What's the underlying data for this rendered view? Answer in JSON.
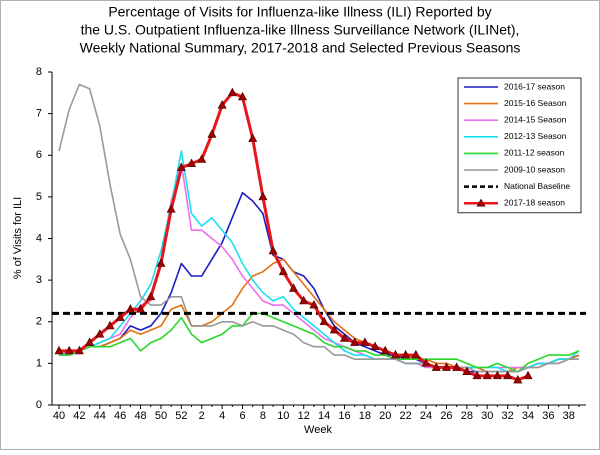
{
  "chart_data": {
    "type": "line",
    "title": [
      "Percentage of Visits for Influenza-like Illness (ILI) Reported by",
      "the U.S. Outpatient Influenza-like Illness Surveillance Network (ILINet),",
      "Weekly National Summary, 2017-2018 and Selected Previous Seasons"
    ],
    "x_label": "Week",
    "y_label": "% of Visits for ILI",
    "categories": [
      "40",
      null,
      "42",
      null,
      "44",
      null,
      "46",
      null,
      "48",
      null,
      "50",
      null,
      "52",
      null,
      "2",
      null,
      "4",
      null,
      "6",
      null,
      "8",
      null,
      "10",
      null,
      "12",
      null,
      "14",
      null,
      "16",
      null,
      "18",
      null,
      "20",
      null,
      "22",
      null,
      "24",
      null,
      "26",
      null,
      "28",
      null,
      "30",
      null,
      "32",
      null,
      "34",
      null,
      "36",
      null,
      "38",
      null
    ],
    "ylim": [
      0,
      8
    ],
    "yticks": [
      0,
      1,
      2,
      3,
      4,
      5,
      6,
      7,
      8
    ],
    "grid": false,
    "legend_position": "upper right",
    "series": [
      {
        "name": "2016-17 season",
        "color": "#1c1cc4",
        "values": [
          1.3,
          1.3,
          1.3,
          1.4,
          1.4,
          1.5,
          1.6,
          1.9,
          1.8,
          1.9,
          2.2,
          2.7,
          3.4,
          3.1,
          3.1,
          3.5,
          3.9,
          4.5,
          5.1,
          4.9,
          4.6,
          3.6,
          3.5,
          3.2,
          3.1,
          2.8,
          2.3,
          1.9,
          1.7,
          1.5,
          1.4,
          1.3,
          1.2,
          1.2,
          1.1,
          1.1,
          1.0,
          0.9,
          0.9,
          0.9,
          0.8,
          0.8,
          0.8,
          0.8,
          0.8,
          0.8,
          0.9,
          1.0,
          1.0,
          1.1,
          1.1,
          1.2
        ]
      },
      {
        "name": "2015-16 Season",
        "color": "#e4700f",
        "values": [
          1.3,
          1.3,
          1.3,
          1.4,
          1.4,
          1.5,
          1.6,
          1.8,
          1.7,
          1.8,
          1.9,
          2.3,
          2.4,
          1.9,
          1.9,
          2.0,
          2.2,
          2.4,
          2.8,
          3.1,
          3.2,
          3.4,
          3.5,
          3.2,
          2.9,
          2.6,
          2.3,
          2.0,
          1.8,
          1.6,
          1.5,
          1.4,
          1.3,
          1.2,
          1.2,
          1.1,
          1.1,
          1.0,
          1.0,
          0.9,
          0.9,
          0.9,
          0.8,
          0.8,
          0.8,
          0.9,
          0.9,
          0.9,
          1.0,
          1.1,
          1.1,
          1.2
        ]
      },
      {
        "name": "2014-15 Season",
        "color": "#ee6fee",
        "values": [
          1.2,
          1.3,
          1.3,
          1.4,
          1.5,
          1.6,
          1.7,
          2.1,
          2.4,
          2.5,
          3.5,
          4.9,
          5.8,
          4.2,
          4.2,
          4.0,
          3.8,
          3.5,
          3.1,
          2.8,
          2.5,
          2.4,
          2.4,
          2.2,
          2.0,
          1.8,
          1.6,
          1.5,
          1.4,
          1.3,
          1.2,
          1.1,
          1.1,
          1.1,
          1.0,
          1.0,
          0.9,
          0.9,
          0.9,
          0.9,
          0.9,
          0.9,
          0.9,
          0.9,
          0.9,
          0.9,
          0.9,
          1.0,
          1.0,
          1.0,
          1.1,
          1.1
        ]
      },
      {
        "name": "2012-13 Season",
        "color": "#18e0ee",
        "values": [
          1.2,
          1.2,
          1.3,
          1.4,
          1.5,
          1.6,
          1.9,
          2.2,
          2.5,
          2.9,
          3.7,
          4.8,
          6.1,
          4.6,
          4.3,
          4.5,
          4.2,
          3.9,
          3.4,
          3.0,
          2.7,
          2.5,
          2.6,
          2.3,
          2.1,
          1.9,
          1.7,
          1.5,
          1.3,
          1.2,
          1.2,
          1.1,
          1.1,
          1.1,
          1.0,
          1.0,
          1.0,
          0.9,
          0.9,
          0.9,
          0.9,
          0.9,
          0.9,
          0.9,
          0.8,
          0.8,
          0.9,
          1.0,
          1.0,
          1.1,
          1.1,
          1.3
        ]
      },
      {
        "name": "2011-12 season",
        "color": "#2ad82a",
        "values": [
          1.2,
          1.2,
          1.3,
          1.4,
          1.4,
          1.4,
          1.5,
          1.6,
          1.3,
          1.5,
          1.6,
          1.8,
          2.1,
          1.7,
          1.5,
          1.6,
          1.7,
          1.9,
          1.9,
          2.2,
          2.2,
          2.1,
          2.0,
          1.9,
          1.8,
          1.7,
          1.5,
          1.4,
          1.4,
          1.3,
          1.3,
          1.2,
          1.2,
          1.1,
          1.1,
          1.1,
          1.1,
          1.1,
          1.1,
          1.1,
          1.0,
          0.9,
          0.9,
          1.0,
          0.9,
          0.8,
          1.0,
          1.1,
          1.2,
          1.2,
          1.2,
          1.3
        ]
      },
      {
        "name": "2009-10 season",
        "color": "#999999",
        "values": [
          6.1,
          7.1,
          7.7,
          7.6,
          6.7,
          5.3,
          4.1,
          3.5,
          2.6,
          2.4,
          2.4,
          2.6,
          2.6,
          1.9,
          1.9,
          1.9,
          2.0,
          2.0,
          1.9,
          2.0,
          1.9,
          1.9,
          1.8,
          1.7,
          1.5,
          1.4,
          1.4,
          1.2,
          1.2,
          1.1,
          1.1,
          1.1,
          1.1,
          1.1,
          1.0,
          1.0,
          1.0,
          0.9,
          0.9,
          0.9,
          0.9,
          0.8,
          0.8,
          0.8,
          0.8,
          0.8,
          0.9,
          0.9,
          1.0,
          1.0,
          1.1,
          1.1
        ]
      },
      {
        "name": "National Baseline",
        "color": "#000000",
        "dashed": true,
        "value": 2.2
      },
      {
        "name": "2017-18 season",
        "color": "#e8151b",
        "marker": "triangle",
        "marker_color": "#a30000",
        "values": [
          1.3,
          1.3,
          1.3,
          1.5,
          1.7,
          1.9,
          2.1,
          2.3,
          2.3,
          2.6,
          3.4,
          4.7,
          5.7,
          5.8,
          5.9,
          6.5,
          7.2,
          7.5,
          7.4,
          6.4,
          5.0,
          3.7,
          3.2,
          2.8,
          2.5,
          2.4,
          2.0,
          1.8,
          1.6,
          1.5,
          1.5,
          1.4,
          1.3,
          1.2,
          1.2,
          1.2,
          1.0,
          0.9,
          0.9,
          0.9,
          0.8,
          0.7,
          0.7,
          0.7,
          0.7,
          0.6,
          0.7,
          null,
          null,
          null,
          null,
          null
        ]
      }
    ]
  }
}
